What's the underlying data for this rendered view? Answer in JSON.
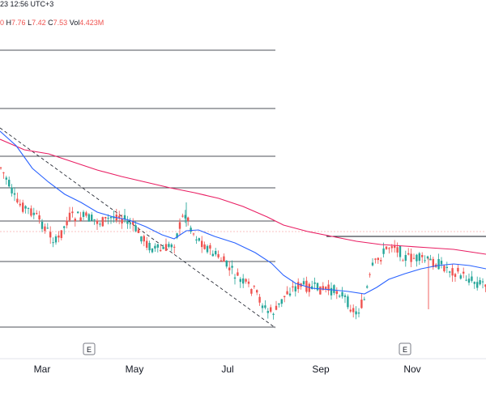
{
  "header": {
    "datetime": "23 12:56 UTC+3",
    "ohlc": [
      {
        "key": "",
        "value": "0"
      },
      {
        "key": "H",
        "value": "7.76"
      },
      {
        "key": "L",
        "value": "7.42"
      },
      {
        "key": "C",
        "value": "7.53"
      },
      {
        "key": "Vol",
        "value": "4.423M"
      }
    ]
  },
  "colors": {
    "up": "#26a69a",
    "down": "#ef5350",
    "ma_fast": "#2962ff",
    "ma_slow": "#e91e63",
    "level_line": "#131722",
    "trend_line": "#131722",
    "axis_text": "#131722",
    "event_badge_border": "#787b86"
  },
  "chart_data": {
    "type": "candlestick",
    "x_tick_labels": [
      "Mar",
      "May",
      "Jul",
      "Sep",
      "Nov"
    ],
    "event_markers": [
      {
        "label": "E",
        "near": "Apr"
      },
      {
        "label": "E",
        "near": "Oct-Nov"
      }
    ],
    "horizontal_levels": 8,
    "indicators": [
      {
        "name": "",
        "color": "blue",
        "kind": "moving average (fast)"
      },
      {
        "name": "",
        "color": "pink",
        "kind": "moving average (slow)"
      }
    ],
    "annotations": [
      "dashed descending trendline from Jan high to Aug low",
      "horizontal resistance line Aug–Dec",
      "dotted last price line"
    ]
  }
}
